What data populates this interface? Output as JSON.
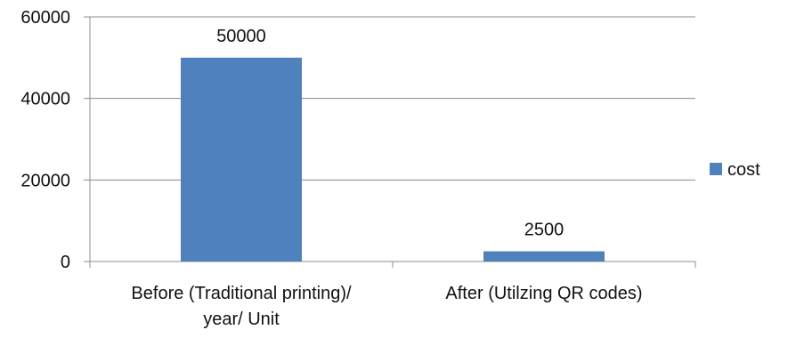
{
  "chart_data": {
    "type": "bar",
    "categories": [
      [
        "Before  (Traditional printing)/",
        "year/ Unit"
      ],
      [
        "After  (Utilzing QR codes)"
      ]
    ],
    "series": [
      {
        "name": "cost",
        "values": [
          50000,
          2500
        ],
        "color": "#4f81bd"
      }
    ],
    "data_labels": [
      "50000",
      "2500"
    ],
    "y_ticks": [
      "0",
      "20000",
      "40000",
      "60000"
    ],
    "ylim": [
      0,
      60000
    ],
    "grid": true,
    "legend_position": "right",
    "title": "",
    "xlabel": "",
    "ylabel": ""
  },
  "legend": {
    "label": "cost"
  }
}
